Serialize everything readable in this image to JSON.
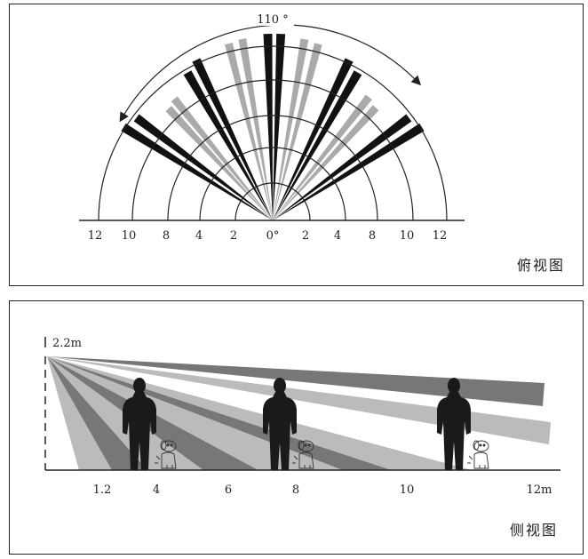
{
  "top_view": {
    "angle_label": "110 °",
    "range_labels": [
      "12",
      "10",
      "8",
      "4",
      "2",
      "0°",
      "2",
      "4",
      "8",
      "10",
      "12"
    ],
    "caption": "俯视图",
    "colors": {
      "dark_beam": "#111111",
      "light_beam": "#aaaaaa",
      "line": "#222222"
    }
  },
  "side_view": {
    "height_label": "2.2m",
    "distance_labels": [
      "1.2",
      "4",
      "6",
      "8",
      "10",
      "12m"
    ],
    "caption": "侧视图",
    "colors": {
      "dark_band": "#777777",
      "light_band": "#bbbbbb",
      "silhouette": "#1a1a1a"
    },
    "figures": [
      "person-silhouette",
      "pet-dog"
    ]
  }
}
